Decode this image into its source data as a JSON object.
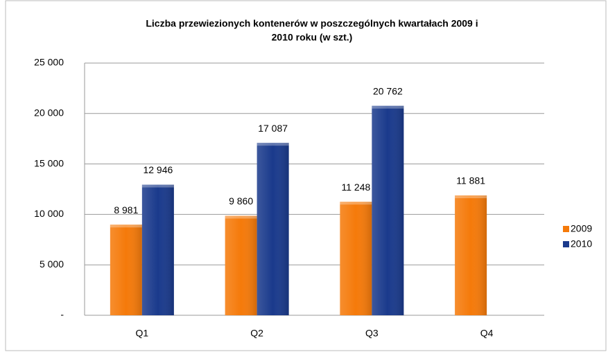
{
  "chart_data": {
    "type": "bar",
    "title": [
      "Liczba przewiezionych kontenerów  w poszczególnych  kwartałach 2009 i",
      "2010 roku (w szt.)"
    ],
    "categories": [
      "Q1",
      "Q2",
      "Q3",
      "Q4"
    ],
    "series": [
      {
        "name": "2009",
        "color": "#f57a0a",
        "values": [
          8981,
          9860,
          11248,
          11881
        ],
        "value_labels": [
          "8 981",
          "9 860",
          "11 248",
          "11 881"
        ]
      },
      {
        "name": "2010",
        "color": "#1a3a8c",
        "values": [
          12946,
          17087,
          20762,
          null
        ],
        "value_labels": [
          "12 946",
          "17 087",
          "20 762",
          null
        ]
      }
    ],
    "ylim": [
      0,
      25000
    ],
    "yticks": [
      {
        "value": 0,
        "label": "-"
      },
      {
        "value": 5000,
        "label": "5 000"
      },
      {
        "value": 10000,
        "label": "10 000"
      },
      {
        "value": 15000,
        "label": "15 000"
      },
      {
        "value": 20000,
        "label": "20 000"
      },
      {
        "value": 25000,
        "label": "25 000"
      }
    ],
    "grid": true,
    "legend": "right"
  }
}
